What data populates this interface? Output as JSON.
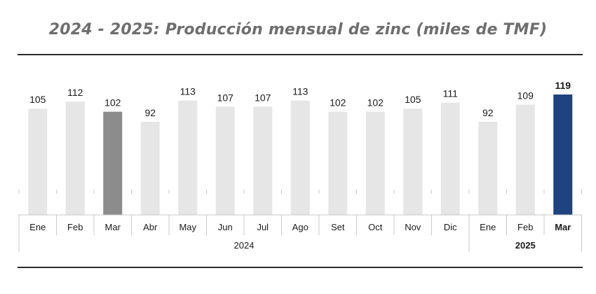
{
  "chart_data": {
    "type": "bar",
    "title": "2024 - 2025: Producción mensual de zinc (miles de TMF)",
    "xlabel": "",
    "ylabel": "",
    "ylim": [
      0,
      119
    ],
    "categories": [
      "Ene",
      "Feb",
      "Mar",
      "Abr",
      "May",
      "Jun",
      "Jul",
      "Ago",
      "Set",
      "Oct",
      "Nov",
      "Dic",
      "Ene",
      "Feb",
      "Mar"
    ],
    "values": [
      105,
      112,
      102,
      92,
      113,
      107,
      107,
      113,
      102,
      102,
      105,
      111,
      92,
      109,
      119
    ],
    "groups": [
      {
        "label": "2024",
        "count": 12,
        "bold": false
      },
      {
        "label": "2025",
        "count": 3,
        "bold": true
      }
    ],
    "highlight": {
      "3": "#8c8c8c",
      "15": "#1f4280"
    },
    "bold_labels": [
      15
    ],
    "colors": {
      "default_bar": "#e6e6e6",
      "text": "#1a1a1a",
      "axis": "#c8c8c8"
    }
  }
}
